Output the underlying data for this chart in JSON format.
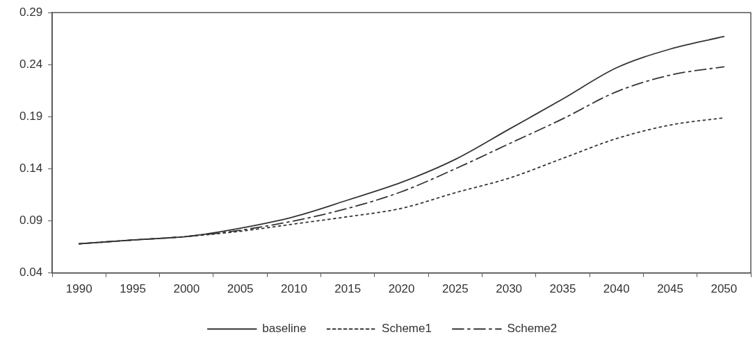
{
  "chart_data": {
    "type": "line",
    "categories": [
      "1990",
      "1995",
      "2000",
      "2005",
      "2010",
      "2015",
      "2020",
      "2025",
      "2030",
      "2035",
      "2040",
      "2045",
      "2050"
    ],
    "series": [
      {
        "name": "baseline",
        "color": "#333333",
        "line_style": "solid",
        "values": [
          0.068,
          0.0716,
          0.075,
          0.083,
          0.094,
          0.11,
          0.127,
          0.149,
          0.178,
          0.207,
          0.237,
          0.255,
          0.267
        ]
      },
      {
        "name": "Scheme1",
        "color": "#333333",
        "line_style": "dotted",
        "values": [
          0.068,
          0.0716,
          0.075,
          0.08,
          0.087,
          0.094,
          0.102,
          0.117,
          0.131,
          0.15,
          0.169,
          0.182,
          0.189
        ]
      },
      {
        "name": "Scheme2",
        "color": "#333333",
        "line_style": "dashed",
        "values": [
          0.068,
          0.0716,
          0.075,
          0.081,
          0.09,
          0.102,
          0.118,
          0.14,
          0.164,
          0.188,
          0.214,
          0.23,
          0.238
        ]
      }
    ],
    "ylim": [
      0.04,
      0.29
    ],
    "yticks": [
      0.04,
      0.09,
      0.14,
      0.19,
      0.24,
      0.29
    ],
    "legend": "bottom",
    "grid": false,
    "marker": "none"
  }
}
